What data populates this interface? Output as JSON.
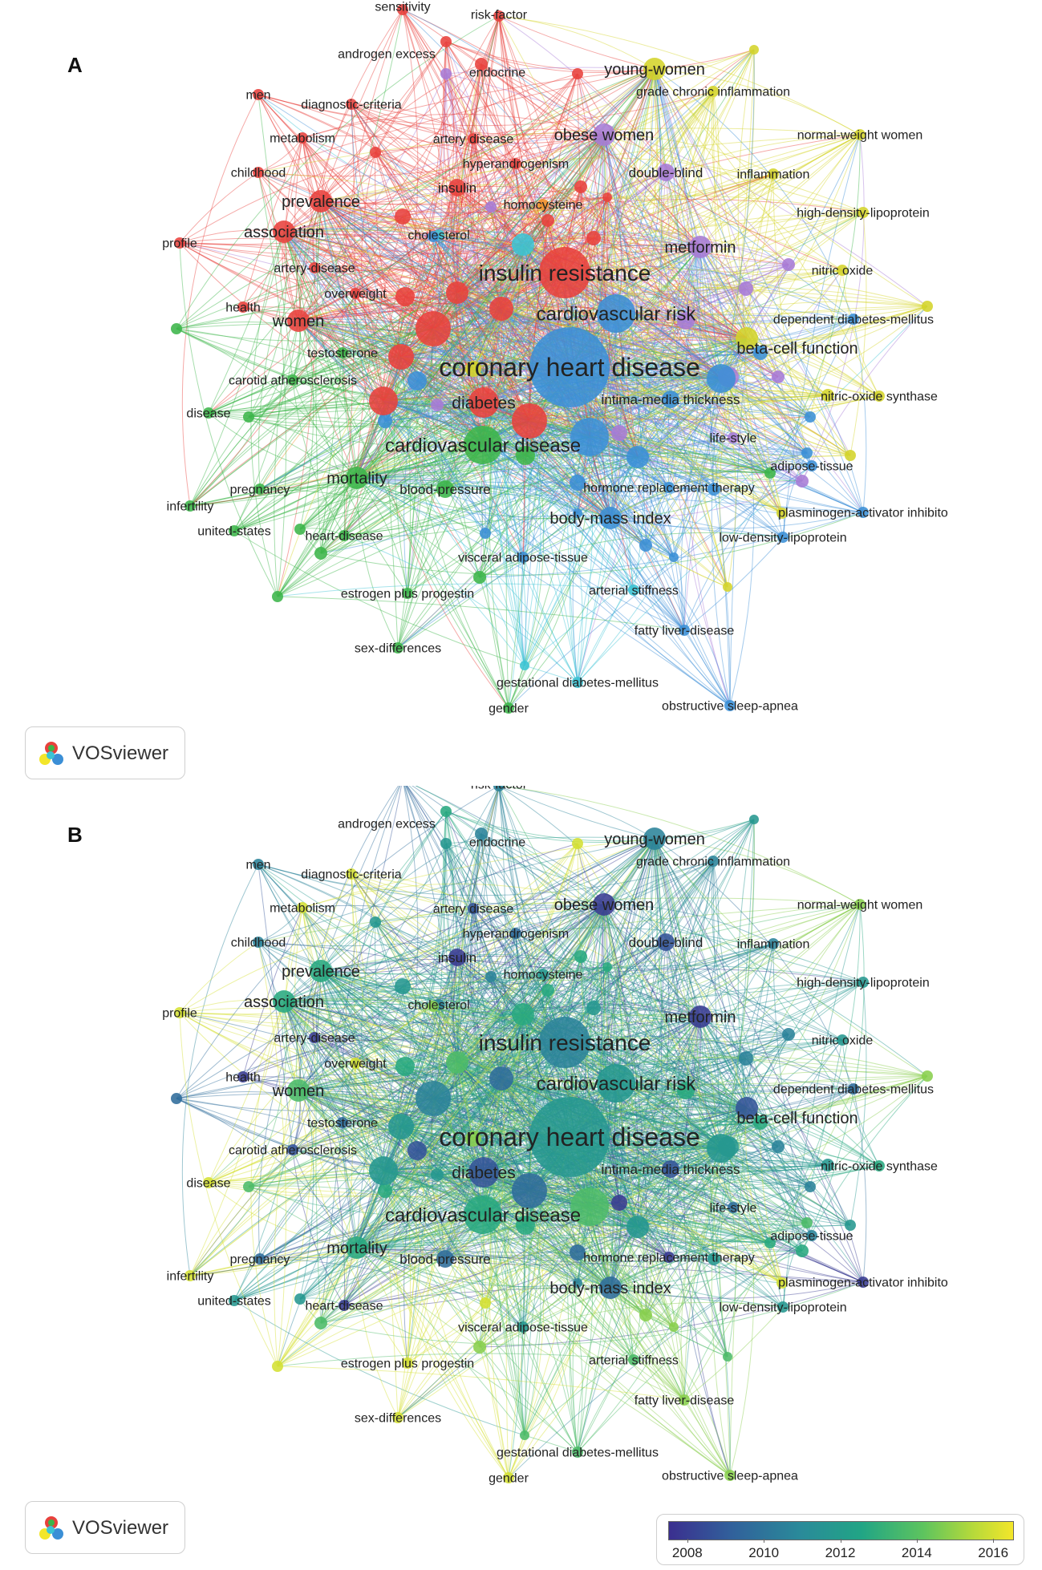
{
  "panels": [
    {
      "letter": "A",
      "mode": "cluster"
    },
    {
      "letter": "B",
      "mode": "year"
    }
  ],
  "badge": {
    "label": "VOSviewer"
  },
  "year_scale": {
    "ticks": [
      "2008",
      "2010",
      "2012",
      "2014",
      "2016"
    ],
    "min": 2007.5,
    "max": 2016.5
  },
  "cluster_colors": {
    "red": "#e8413c",
    "green": "#3cb54a",
    "blue": "#3b8fd6",
    "yellow": "#d4d42a",
    "purple": "#a77bd6",
    "cyan": "#3cc4d4",
    "orange": "#f0922b"
  },
  "nodes": [
    {
      "label": "sensitivity",
      "c": "red",
      "w": 1,
      "y": 2010
    },
    {
      "label": "risk-factor",
      "c": "red",
      "w": 1,
      "y": 2011
    },
    {
      "label": "androgen excess",
      "c": "red",
      "w": 1,
      "y": 2013
    },
    {
      "label": "endocrine",
      "c": "purple",
      "w": 1,
      "y": 2012
    },
    {
      "label": "men",
      "c": "red",
      "w": 1,
      "y": 2011
    },
    {
      "label": "diagnostic-criteria",
      "c": "red",
      "w": 1,
      "y": 2016
    },
    {
      "label": "metabolism",
      "c": "red",
      "w": 1,
      "y": 2016
    },
    {
      "label": "artery disease",
      "c": "red",
      "w": 1,
      "y": 2009
    },
    {
      "label": "childhood",
      "c": "red",
      "w": 1,
      "y": 2011
    },
    {
      "label": "hyperandrogenism",
      "c": "red",
      "w": 1,
      "y": 2010
    },
    {
      "label": "insulin",
      "c": "red",
      "w": 2,
      "y": 2008
    },
    {
      "label": "homocysteine",
      "c": "orange",
      "w": 1,
      "y": 2012
    },
    {
      "label": "prevalence",
      "c": "red",
      "w": 3,
      "y": 2013
    },
    {
      "label": "association",
      "c": "red",
      "w": 3,
      "y": 2013
    },
    {
      "label": "cholesterol",
      "c": "cyan",
      "w": 1,
      "y": 2011
    },
    {
      "label": "profile",
      "c": "red",
      "w": 1,
      "y": 2016
    },
    {
      "label": "artery-disease",
      "c": "red",
      "w": 1,
      "y": 2008
    },
    {
      "label": "overweight",
      "c": "red",
      "w": 1,
      "y": 2016
    },
    {
      "label": "health",
      "c": "red",
      "w": 1,
      "y": 2008
    },
    {
      "label": "women",
      "c": "red",
      "w": 3,
      "y": 2014
    },
    {
      "label": "testosterone",
      "c": "green",
      "w": 1,
      "y": 2010
    },
    {
      "label": "carotid atherosclerosis",
      "c": "green",
      "w": 1,
      "y": 2009
    },
    {
      "label": "disease",
      "c": "green",
      "w": 1,
      "y": 2016
    },
    {
      "label": "infertility",
      "c": "green",
      "w": 1,
      "y": 2016
    },
    {
      "label": "pregnancy",
      "c": "green",
      "w": 1,
      "y": 2010
    },
    {
      "label": "united-states",
      "c": "green",
      "w": 1,
      "y": 2012
    },
    {
      "label": "heart-disease",
      "c": "green",
      "w": 1,
      "y": 2008
    },
    {
      "label": "mortality",
      "c": "green",
      "w": 3,
      "y": 2013
    },
    {
      "label": "blood-pressure",
      "c": "green",
      "w": 2,
      "y": 2010
    },
    {
      "label": "estrogen plus progestin",
      "c": "green",
      "w": 1,
      "y": 2016
    },
    {
      "label": "sex-differences",
      "c": "green",
      "w": 1,
      "y": 2016
    },
    {
      "label": "gestational diabetes-mellitus",
      "c": "cyan",
      "w": 1,
      "y": 2014
    },
    {
      "label": "gender",
      "c": "green",
      "w": 1,
      "y": 2016
    },
    {
      "label": "young-women",
      "c": "yellow",
      "w": 3,
      "y": 2011
    },
    {
      "label": "grade chronic inflammation",
      "c": "yellow",
      "w": 1,
      "y": 2011
    },
    {
      "label": "obese women",
      "c": "purple",
      "w": 3,
      "y": 2008
    },
    {
      "label": "normal-weight women",
      "c": "yellow",
      "w": 1,
      "y": 2015
    },
    {
      "label": "double-blind",
      "c": "purple",
      "w": 2,
      "y": 2009
    },
    {
      "label": "inflammation",
      "c": "yellow",
      "w": 1,
      "y": 2011
    },
    {
      "label": "high-density-lipoprotein",
      "c": "yellow",
      "w": 1,
      "y": 2012
    },
    {
      "label": "metformin",
      "c": "purple",
      "w": 3,
      "y": 2008
    },
    {
      "label": "nitric oxide",
      "c": "yellow",
      "w": 1,
      "y": 2012
    },
    {
      "label": "insulin resistance",
      "c": "red",
      "w": 6,
      "y": 2011
    },
    {
      "label": "cardiovascular risk",
      "c": "blue",
      "w": 5,
      "y": 2012
    },
    {
      "label": "dependent diabetes-mellitus",
      "c": "blue",
      "w": 1,
      "y": 2010
    },
    {
      "label": "beta-cell function",
      "c": "yellow",
      "w": 3,
      "y": 2009
    },
    {
      "label": "coronary heart disease",
      "c": "blue",
      "w": 8,
      "y": 2012
    },
    {
      "label": "nitric-oxide synthase",
      "c": "yellow",
      "w": 1,
      "y": 2013
    },
    {
      "label": "intima-media thickness",
      "c": "blue",
      "w": 2,
      "y": 2009
    },
    {
      "label": "diabetes",
      "c": "red",
      "w": 4,
      "y": 2009
    },
    {
      "label": "life-style",
      "c": "purple",
      "w": 1,
      "y": 2010
    },
    {
      "label": "cardiovascular disease",
      "c": "green",
      "w": 5,
      "y": 2013
    },
    {
      "label": "adipose-tissue",
      "c": "blue",
      "w": 1,
      "y": 2011
    },
    {
      "label": "hormone replacement therapy",
      "c": "blue",
      "w": 1,
      "y": 2008
    },
    {
      "label": "plasminogen-activator inhibito",
      "c": "blue",
      "w": 1,
      "y": 2008
    },
    {
      "label": "body-mass index",
      "c": "blue",
      "w": 3,
      "y": 2010
    },
    {
      "label": "low-density-lipoprotein",
      "c": "blue",
      "w": 1,
      "y": 2012
    },
    {
      "label": "visceral adipose-tissue",
      "c": "blue",
      "w": 1,
      "y": 2012
    },
    {
      "label": "arterial stiffness",
      "c": "cyan",
      "w": 1,
      "y": 2014
    },
    {
      "label": "fatty liver-disease",
      "c": "blue",
      "w": 1,
      "y": 2015
    },
    {
      "label": "obstructive sleep-apnea",
      "c": "blue",
      "w": 1,
      "y": 2015
    }
  ]
}
